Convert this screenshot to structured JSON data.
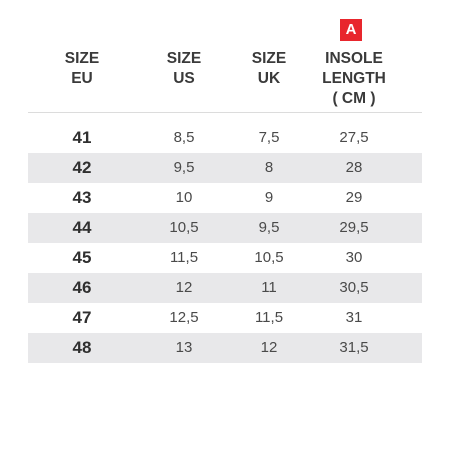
{
  "badge": "A",
  "headers": {
    "eu": [
      "SIZE",
      "EU"
    ],
    "us": [
      "SIZE",
      "US"
    ],
    "uk": [
      "SIZE",
      "UK"
    ],
    "insole": [
      "INSOLE",
      "LENGTH",
      "( CM )"
    ]
  },
  "rows": [
    {
      "eu": "41",
      "us": "8,5",
      "uk": "7,5",
      "insole": "27,5"
    },
    {
      "eu": "42",
      "us": "9,5",
      "uk": "8",
      "insole": "28"
    },
    {
      "eu": "43",
      "us": "10",
      "uk": "9",
      "insole": "29"
    },
    {
      "eu": "44",
      "us": "10,5",
      "uk": "9,5",
      "insole": "29,5"
    },
    {
      "eu": "45",
      "us": "11,5",
      "uk": "10,5",
      "insole": "30"
    },
    {
      "eu": "46",
      "us": "12",
      "uk": "11",
      "insole": "30,5"
    },
    {
      "eu": "47",
      "us": "12,5",
      "uk": "11,5",
      "insole": "31"
    },
    {
      "eu": "48",
      "us": "13",
      "uk": "12",
      "insole": "31,5"
    }
  ],
  "colors": {
    "badge": "#e8262d",
    "row_shade": "#e8e8ea",
    "text": "#2f2f2f"
  }
}
